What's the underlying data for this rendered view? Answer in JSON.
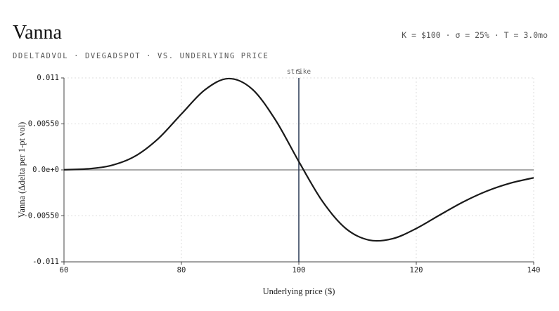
{
  "chart_data": {
    "type": "line",
    "title": "Vanna",
    "subtitle": "DDELTADVOL · DVEGADSPOT · VS. UNDERLYING PRICE",
    "parameters": "K = $100 · σ = 25% · T = 3.0mo",
    "x_label": "Underlying price ($)",
    "y_label": "Vanna (Δdelta per 1-pt vol)",
    "x": [
      60,
      64,
      68,
      72,
      76,
      80,
      84,
      88,
      92,
      96,
      100,
      104,
      108,
      112,
      116,
      120,
      124,
      128,
      132,
      136,
      140
    ],
    "series": [
      {
        "color": "#1a1a1a",
        "values": [
          2.02e-05,
          0.0001234,
          0.000521,
          0.001598,
          0.003704,
          0.006686,
          0.009573,
          0.010922,
          0.009697,
          0.005996,
          0.000995,
          -0.003736,
          -0.007013,
          -0.0084,
          -0.008221,
          -0.007008,
          -0.005396,
          -0.003829,
          -0.002539,
          -0.001589,
          -0.000945
        ]
      }
    ],
    "xlim": [
      60,
      140
    ],
    "xticks": [
      60,
      80,
      100,
      120,
      140
    ],
    "ylim": [
      -0.011,
      0.011
    ],
    "yticks": [
      -0.011,
      {
        "value": -0.0055,
        "label": "-0.00550"
      },
      {
        "value": 0,
        "label": "0.0e+0"
      },
      {
        "value": 0.0055,
        "label": "0.00550"
      },
      0.011
    ],
    "grid": true,
    "vlines": [
      {
        "label": "strike",
        "x": 100
      },
      {
        "label": "S",
        "x": 100
      }
    ]
  }
}
